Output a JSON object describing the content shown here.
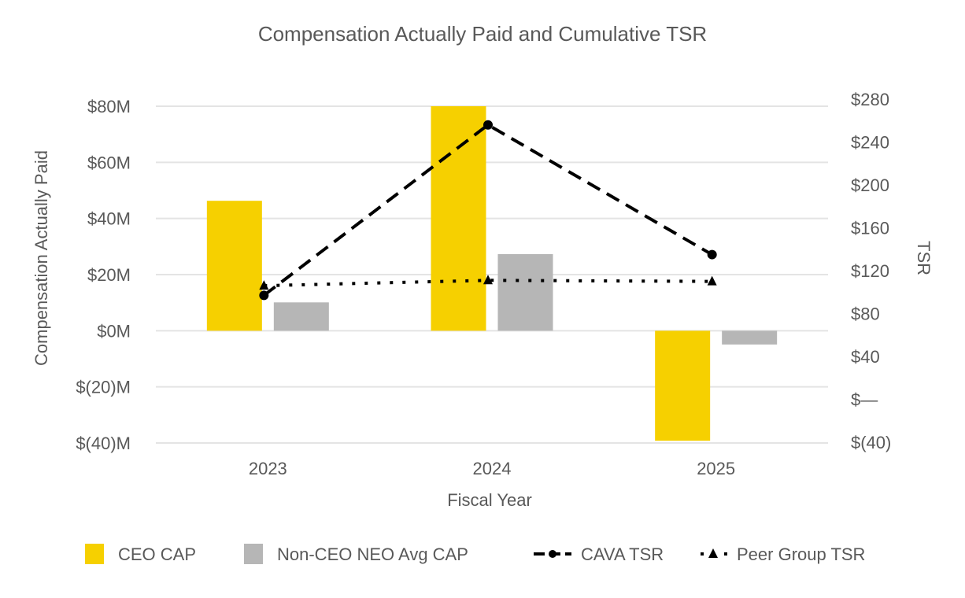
{
  "chart_data": {
    "type": "bar",
    "title": "Compensation Actually Paid and Cumulative TSR",
    "xlabel": "Fiscal Year",
    "ylabel": "Compensation Actually Paid",
    "y2label": "TSR",
    "categories": [
      "2023",
      "2024",
      "2025"
    ],
    "ylim": [
      -40,
      80
    ],
    "y_ticks": [
      80,
      60,
      40,
      20,
      0,
      -20,
      -40
    ],
    "y_tick_labels": [
      "$80M",
      "$60M",
      "$40M",
      "$20M",
      "$0M",
      "$(20)M",
      "$(40)M"
    ],
    "y2lim": [
      -40,
      280
    ],
    "y2_ticks": [
      280,
      240,
      200,
      160,
      120,
      80,
      40,
      0,
      -40
    ],
    "y2_tick_labels": [
      "$280",
      "$240",
      "$200",
      "$160",
      "$120",
      "$80",
      "$40",
      "$—",
      "$(40)"
    ],
    "grid": true,
    "legend_position": "bottom",
    "series": [
      {
        "name": "CEO CAP",
        "type": "bar",
        "axis": "left",
        "color": "#f6d000",
        "values": [
          46.3,
          80.0,
          -39.2
        ]
      },
      {
        "name": "Non-CEO NEO Avg CAP",
        "type": "bar",
        "axis": "left",
        "color": "#b6b6b6",
        "values": [
          10.1,
          27.3,
          -4.9
        ]
      },
      {
        "name": "CAVA TSR",
        "type": "line",
        "axis": "right",
        "style": "dashed",
        "marker": "circle",
        "color": "#000000",
        "values": [
          97,
          256,
          135
        ]
      },
      {
        "name": "Peer Group TSR",
        "type": "line",
        "axis": "right",
        "style": "dotted",
        "marker": "triangle",
        "color": "#000000",
        "values": [
          106,
          111,
          110
        ]
      }
    ]
  }
}
